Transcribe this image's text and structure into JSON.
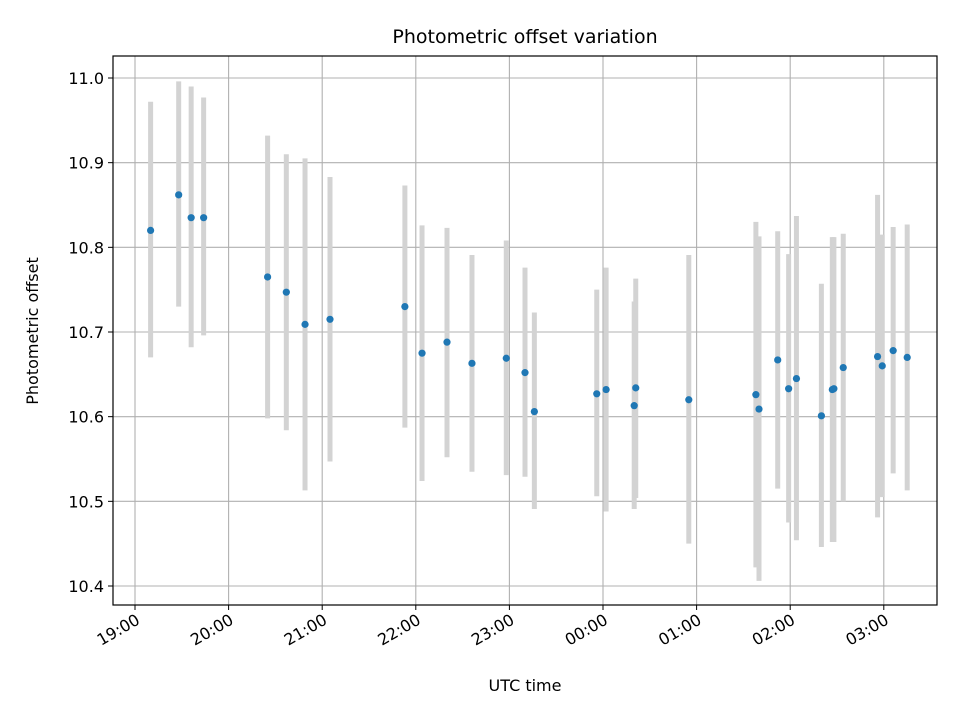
{
  "chart_data": {
    "type": "scatter",
    "title": "Photometric offset variation",
    "xlabel": "UTC time",
    "ylabel": "Photometric offset",
    "grid": true,
    "ylim": [
      10.38,
      11.025
    ],
    "xlim": [
      "19:00 -0.1h",
      "03:38"
    ],
    "x_ticks": [
      "19:00",
      "20:00",
      "21:00",
      "22:00",
      "23:00",
      "00:00",
      "01:00",
      "02:00",
      "03:00"
    ],
    "y_ticks": [
      "10.4",
      "10.5",
      "10.6",
      "10.7",
      "10.8",
      "10.9",
      "11.0"
    ],
    "colors": {
      "points": "#1f77b4",
      "error_bars": "#d3d3d3",
      "grid": "#b0b0b0"
    },
    "points": [
      {
        "t": "19:10",
        "y": 10.82,
        "lo": 10.67,
        "hi": 10.972
      },
      {
        "t": "19:28",
        "y": 10.862,
        "lo": 10.73,
        "hi": 10.996
      },
      {
        "t": "19:36",
        "y": 10.835,
        "lo": 10.682,
        "hi": 10.99
      },
      {
        "t": "19:44",
        "y": 10.835,
        "lo": 10.696,
        "hi": 10.977
      },
      {
        "t": "20:25",
        "y": 10.765,
        "lo": 10.598,
        "hi": 10.932
      },
      {
        "t": "20:37",
        "y": 10.747,
        "lo": 10.584,
        "hi": 10.91
      },
      {
        "t": "20:49",
        "y": 10.709,
        "lo": 10.513,
        "hi": 10.905
      },
      {
        "t": "21:05",
        "y": 10.715,
        "lo": 10.547,
        "hi": 10.883
      },
      {
        "t": "21:53",
        "y": 10.73,
        "lo": 10.587,
        "hi": 10.873
      },
      {
        "t": "22:04",
        "y": 10.675,
        "lo": 10.524,
        "hi": 10.826
      },
      {
        "t": "22:20",
        "y": 10.688,
        "lo": 10.552,
        "hi": 10.823
      },
      {
        "t": "22:36",
        "y": 10.663,
        "lo": 10.535,
        "hi": 10.791
      },
      {
        "t": "22:58",
        "y": 10.669,
        "lo": 10.531,
        "hi": 10.808
      },
      {
        "t": "23:10",
        "y": 10.652,
        "lo": 10.529,
        "hi": 10.776
      },
      {
        "t": "23:16",
        "y": 10.606,
        "lo": 10.491,
        "hi": 10.723
      },
      {
        "t": "23:56",
        "y": 10.627,
        "lo": 10.506,
        "hi": 10.75
      },
      {
        "t": "00:02",
        "y": 10.632,
        "lo": 10.488,
        "hi": 10.776
      },
      {
        "t": "00:20",
        "y": 10.613,
        "lo": 10.491,
        "hi": 10.736
      },
      {
        "t": "00:21",
        "y": 10.634,
        "lo": 10.504,
        "hi": 10.763
      },
      {
        "t": "00:55",
        "y": 10.62,
        "lo": 10.45,
        "hi": 10.791
      },
      {
        "t": "01:38",
        "y": 10.626,
        "lo": 10.422,
        "hi": 10.83
      },
      {
        "t": "01:40",
        "y": 10.609,
        "lo": 10.406,
        "hi": 10.813
      },
      {
        "t": "01:52",
        "y": 10.667,
        "lo": 10.515,
        "hi": 10.819
      },
      {
        "t": "01:59",
        "y": 10.633,
        "lo": 10.475,
        "hi": 10.792
      },
      {
        "t": "02:04",
        "y": 10.645,
        "lo": 10.454,
        "hi": 10.837
      },
      {
        "t": "02:20",
        "y": 10.601,
        "lo": 10.446,
        "hi": 10.757
      },
      {
        "t": "02:27",
        "y": 10.632,
        "lo": 10.452,
        "hi": 10.812
      },
      {
        "t": "02:28",
        "y": 10.633,
        "lo": 10.452,
        "hi": 10.812
      },
      {
        "t": "02:34",
        "y": 10.658,
        "lo": 10.5,
        "hi": 10.816
      },
      {
        "t": "02:56",
        "y": 10.671,
        "lo": 10.481,
        "hi": 10.862
      },
      {
        "t": "02:59",
        "y": 10.66,
        "lo": 10.505,
        "hi": 10.815
      },
      {
        "t": "03:06",
        "y": 10.678,
        "lo": 10.533,
        "hi": 10.824
      },
      {
        "t": "03:15",
        "y": 10.67,
        "lo": 10.513,
        "hi": 10.827
      }
    ]
  }
}
